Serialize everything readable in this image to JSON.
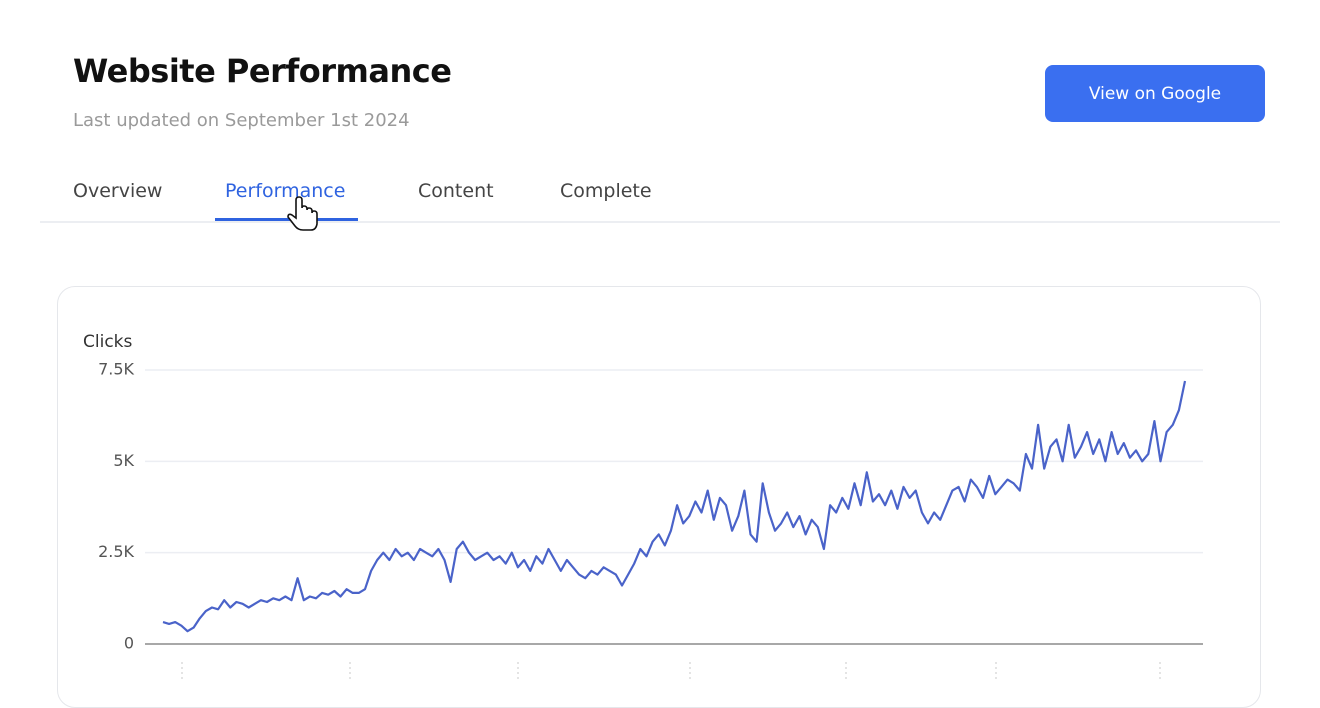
{
  "header": {
    "title": "Website Performance",
    "subtitle": "Last updated on September 1st 2024",
    "button": "View on Google"
  },
  "tabs": [
    "Overview",
    "Performance",
    "Content",
    "Complete"
  ],
  "active_tab": 1,
  "chart_data": {
    "type": "line",
    "y_label": "Clicks",
    "ylim": [
      0,
      7500
    ],
    "yticks": [
      0,
      {
        "value": 2500,
        "label": "2.5K"
      },
      {
        "value": 5000,
        "label": "5K"
      },
      {
        "value": 7500,
        "label": "7.5K"
      }
    ],
    "grid": true,
    "series": [
      {
        "name": "Clicks",
        "color": "#4a63c9",
        "values": [
          600,
          550,
          600,
          500,
          350,
          450,
          700,
          900,
          1000,
          950,
          1200,
          1000,
          1150,
          1100,
          1000,
          1100,
          1200,
          1150,
          1250,
          1200,
          1300,
          1200,
          1800,
          1200,
          1300,
          1250,
          1400,
          1350,
          1450,
          1300,
          1500,
          1400,
          1400,
          1500,
          2000,
          2300,
          2500,
          2300,
          2600,
          2400,
          2500,
          2300,
          2600,
          2500,
          2400,
          2600,
          2300,
          1700,
          2600,
          2800,
          2500,
          2300,
          2400,
          2500,
          2300,
          2400,
          2200,
          2500,
          2100,
          2300,
          2000,
          2400,
          2200,
          2600,
          2300,
          2000,
          2300,
          2100,
          1900,
          1800,
          2000,
          1900,
          2100,
          2000,
          1900,
          1600,
          1900,
          2200,
          2600,
          2400,
          2800,
          3000,
          2700,
          3100,
          3800,
          3300,
          3500,
          3900,
          3600,
          4200,
          3400,
          4000,
          3800,
          3100,
          3500,
          4200,
          3000,
          2800,
          4400,
          3600,
          3100,
          3300,
          3600,
          3200,
          3500,
          3000,
          3400,
          3200,
          2600,
          3800,
          3600,
          4000,
          3700,
          4400,
          3800,
          4700,
          3900,
          4100,
          3800,
          4200,
          3700,
          4300,
          4000,
          4200,
          3600,
          3300,
          3600,
          3400,
          3800,
          4200,
          4300,
          3900,
          4500,
          4300,
          4000,
          4600,
          4100,
          4300,
          4500,
          4400,
          4200,
          5200,
          4800,
          6000,
          4800,
          5400,
          5600,
          5000,
          6000,
          5100,
          5400,
          5800,
          5200,
          5600,
          5000,
          5800,
          5200,
          5500,
          5100,
          5300,
          5000,
          5200,
          6100,
          5000,
          5800,
          6000,
          6400,
          7200
        ]
      }
    ]
  }
}
